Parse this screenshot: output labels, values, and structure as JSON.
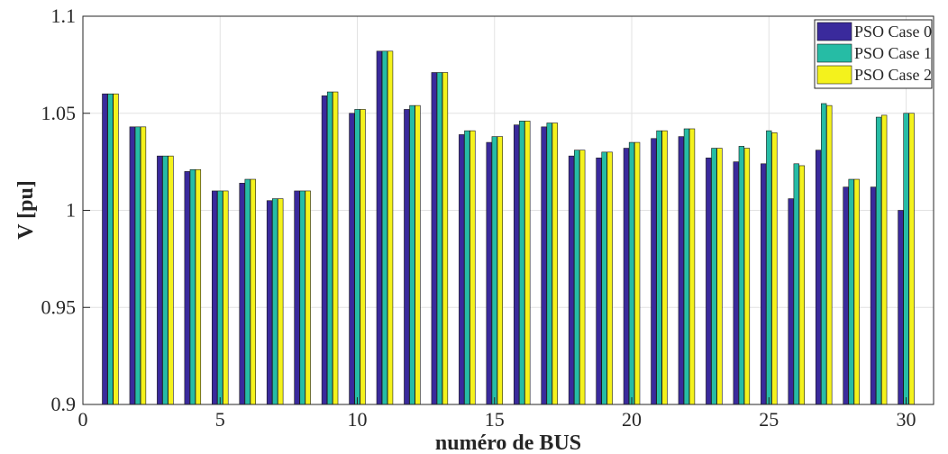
{
  "chart_data": {
    "type": "bar",
    "title": "",
    "xlabel": "numéro de BUS",
    "ylabel": "V [pu]",
    "xlim": [
      0,
      31
    ],
    "ylim": [
      0.9,
      1.1
    ],
    "grid": true,
    "legend_position": "top-right",
    "x_ticks": [
      "0",
      "5",
      "10",
      "15",
      "20",
      "25",
      "30"
    ],
    "y_ticks": [
      "0.9",
      "0.95",
      "1",
      "1.05",
      "1.1"
    ],
    "categories": [
      1,
      2,
      3,
      4,
      5,
      6,
      7,
      8,
      9,
      10,
      11,
      12,
      13,
      14,
      15,
      16,
      17,
      18,
      19,
      20,
      21,
      22,
      23,
      24,
      25,
      26,
      27,
      28,
      29,
      30
    ],
    "series": [
      {
        "name": "PSO Case 0",
        "color": "#3a2a9c",
        "values": [
          1.06,
          1.043,
          1.028,
          1.02,
          1.01,
          1.014,
          1.005,
          1.01,
          1.059,
          1.05,
          1.082,
          1.052,
          1.071,
          1.039,
          1.035,
          1.044,
          1.043,
          1.028,
          1.027,
          1.032,
          1.037,
          1.038,
          1.027,
          1.025,
          1.024,
          1.006,
          1.031,
          1.012,
          1.012,
          1.0
        ]
      },
      {
        "name": "PSO Case 1",
        "color": "#26bca5",
        "values": [
          1.06,
          1.043,
          1.028,
          1.021,
          1.01,
          1.016,
          1.006,
          1.01,
          1.061,
          1.052,
          1.082,
          1.054,
          1.071,
          1.041,
          1.038,
          1.046,
          1.045,
          1.031,
          1.03,
          1.035,
          1.041,
          1.042,
          1.032,
          1.033,
          1.041,
          1.024,
          1.055,
          1.016,
          1.048,
          1.05
        ]
      },
      {
        "name": "PSO Case 2",
        "color": "#f4f21c",
        "values": [
          1.06,
          1.043,
          1.028,
          1.021,
          1.01,
          1.016,
          1.006,
          1.01,
          1.061,
          1.052,
          1.082,
          1.054,
          1.071,
          1.041,
          1.038,
          1.046,
          1.045,
          1.031,
          1.03,
          1.035,
          1.041,
          1.042,
          1.032,
          1.032,
          1.04,
          1.023,
          1.054,
          1.016,
          1.049,
          1.05
        ]
      }
    ]
  }
}
